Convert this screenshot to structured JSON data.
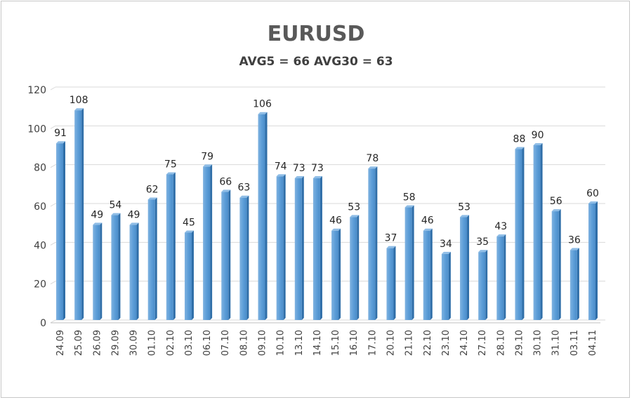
{
  "chart_data": {
    "type": "bar",
    "title": "EURUSD",
    "subtitle": "AVG5 = 66 AVG30 = 63",
    "xlabel": "",
    "ylabel": "",
    "ylim": [
      0,
      120
    ],
    "yticks": [
      0,
      20,
      40,
      60,
      80,
      100,
      120
    ],
    "grid": true,
    "legend": "none",
    "bar_color": "#5b9bd5",
    "categories": [
      "24.09",
      "25.09",
      "26.09",
      "29.09",
      "30.09",
      "01.10",
      "02.10",
      "03.10",
      "06.10",
      "07.10",
      "08.10",
      "09.10",
      "10.10",
      "13.10",
      "14.10",
      "15.10",
      "16.10",
      "17.10",
      "20.10",
      "21.10",
      "22.10",
      "23.10",
      "24.10",
      "27.10",
      "28.10",
      "29.10",
      "30.10",
      "31.10",
      "03.11",
      "04.11"
    ],
    "values": [
      91,
      108,
      49,
      54,
      49,
      62,
      75,
      45,
      79,
      66,
      63,
      106,
      74,
      73,
      73,
      46,
      53,
      78,
      37,
      58,
      46,
      34,
      53,
      35,
      43,
      88,
      90,
      56,
      36,
      60
    ]
  }
}
